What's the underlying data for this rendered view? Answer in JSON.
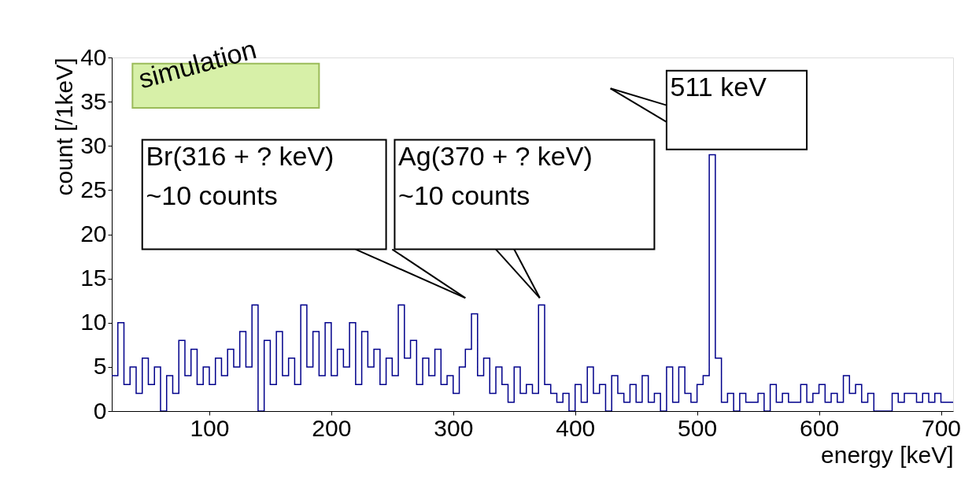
{
  "chart_data": {
    "type": "step",
    "xlabel": "energy [keV]",
    "ylabel": "count [/1keV]",
    "x": [
      20,
      25,
      30,
      35,
      40,
      45,
      50,
      55,
      60,
      65,
      70,
      75,
      80,
      85,
      90,
      95,
      100,
      105,
      110,
      115,
      120,
      125,
      130,
      135,
      140,
      145,
      150,
      155,
      160,
      165,
      170,
      175,
      180,
      185,
      190,
      195,
      200,
      205,
      210,
      215,
      220,
      225,
      230,
      235,
      240,
      245,
      250,
      255,
      260,
      265,
      270,
      275,
      280,
      285,
      290,
      295,
      300,
      305,
      310,
      315,
      320,
      325,
      330,
      335,
      340,
      345,
      350,
      355,
      360,
      365,
      370,
      375,
      380,
      385,
      390,
      395,
      400,
      405,
      410,
      415,
      420,
      425,
      430,
      435,
      440,
      445,
      450,
      455,
      460,
      465,
      470,
      475,
      480,
      485,
      490,
      495,
      500,
      505,
      510,
      515,
      520,
      525,
      530,
      535,
      540,
      545,
      550,
      555,
      560,
      565,
      570,
      575,
      580,
      585,
      590,
      595,
      600,
      605,
      610,
      615,
      620,
      625,
      630,
      635,
      640,
      645,
      650,
      655,
      660,
      665,
      670,
      675,
      680,
      685,
      690,
      695,
      700,
      705,
      710
    ],
    "values": [
      4,
      10,
      3,
      5,
      2,
      6,
      3,
      5,
      0,
      4,
      2,
      8,
      4,
      7,
      3,
      5,
      3,
      6,
      4,
      7,
      5,
      9,
      5,
      12,
      0,
      8,
      3,
      9,
      4,
      6,
      3,
      12,
      5,
      9,
      4,
      10,
      4,
      7,
      5,
      10,
      3,
      9,
      5,
      7,
      3,
      6,
      4,
      12,
      6,
      8,
      3,
      6,
      4,
      7,
      3,
      4,
      2,
      5,
      7,
      11,
      4,
      6,
      2,
      5,
      3,
      1,
      5,
      2,
      3,
      2,
      12,
      3,
      2,
      1,
      2,
      0,
      3,
      1,
      5,
      2,
      3,
      0,
      4,
      2,
      1,
      3,
      1,
      4,
      1,
      2,
      0,
      5,
      1,
      5,
      2,
      1,
      3,
      4,
      29,
      6,
      1,
      2,
      0,
      2,
      1,
      1,
      2,
      0,
      3,
      1,
      2,
      1,
      1,
      3,
      1,
      2,
      3,
      1,
      2,
      1,
      4,
      2,
      3,
      1,
      2,
      0,
      0,
      0,
      2,
      1,
      2,
      2,
      1,
      2,
      1,
      2,
      1,
      1,
      1
    ],
    "color": "#00008b",
    "xlim": [
      20,
      710
    ],
    "xticks": [
      100,
      200,
      300,
      400,
      500,
      600,
      700
    ],
    "ylim": [
      0,
      40
    ],
    "yticks": [
      0,
      5,
      10,
      15,
      20,
      25,
      30,
      35,
      40
    ],
    "annotations": [
      "simulation",
      "Br(316 + ? keV)\n~10 counts",
      "Ag(370 + ? keV)\n~10 counts",
      "511 keV"
    ]
  }
}
